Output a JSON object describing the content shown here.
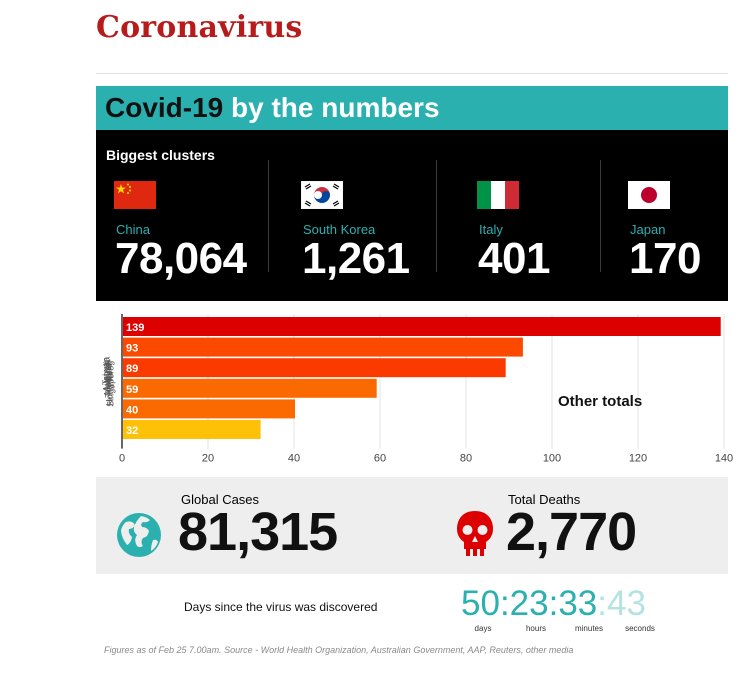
{
  "page_title": "Coronavirus",
  "banner": {
    "dark": "Covid-19",
    "light": "by the numbers"
  },
  "clusters": {
    "heading": "Biggest clusters",
    "items": [
      {
        "country": "China",
        "value": "78,064",
        "flag": "china-flag-icon"
      },
      {
        "country": "South Korea",
        "value": "1,261",
        "flag": "south-korea-flag-icon"
      },
      {
        "country": "Italy",
        "value": "401",
        "flag": "italy-flag-icon"
      },
      {
        "country": "Japan",
        "value": "170",
        "flag": "japan-flag-icon"
      }
    ]
  },
  "chart_data": {
    "type": "bar",
    "orientation": "horizontal",
    "title": "Other totals",
    "categories": [
      "Taiwan",
      "Australia",
      "Malaysia",
      "Thailand",
      "Hong Kong",
      "Singapore"
    ],
    "values": [
      32,
      40,
      59,
      89,
      93,
      139
    ],
    "bar_colors": [
      "#ffc107",
      "#fb6a00",
      "#fb6a00",
      "#fb3a00",
      "#fb4a00",
      "#dd0000"
    ],
    "xlim": [
      0,
      140
    ],
    "xticks": [
      0,
      20,
      40,
      60,
      80,
      100,
      120,
      140
    ],
    "grid": true
  },
  "stats": {
    "global_cases": {
      "label": "Global Cases",
      "value": "81,315",
      "icon": "globe-icon",
      "color": "#2bb0b0"
    },
    "total_deaths": {
      "label": "Total Deaths",
      "value": "2,770",
      "icon": "skull-icon",
      "color": "#dd0000"
    }
  },
  "timer": {
    "label": "Days since the virus was discovered",
    "days": "50",
    "hours": "23",
    "minutes": "33",
    "seconds": "43",
    "units": [
      "days",
      "hours",
      "minutes",
      "seconds"
    ]
  },
  "footnote": "Figures as of Feb 25 7.00am. Source - World Health Organization, Australian Government, AAP, Reuters, other media",
  "colors": {
    "teal": "#2bb0b0",
    "title_red": "#b71c1c",
    "death_red": "#dd0000"
  }
}
